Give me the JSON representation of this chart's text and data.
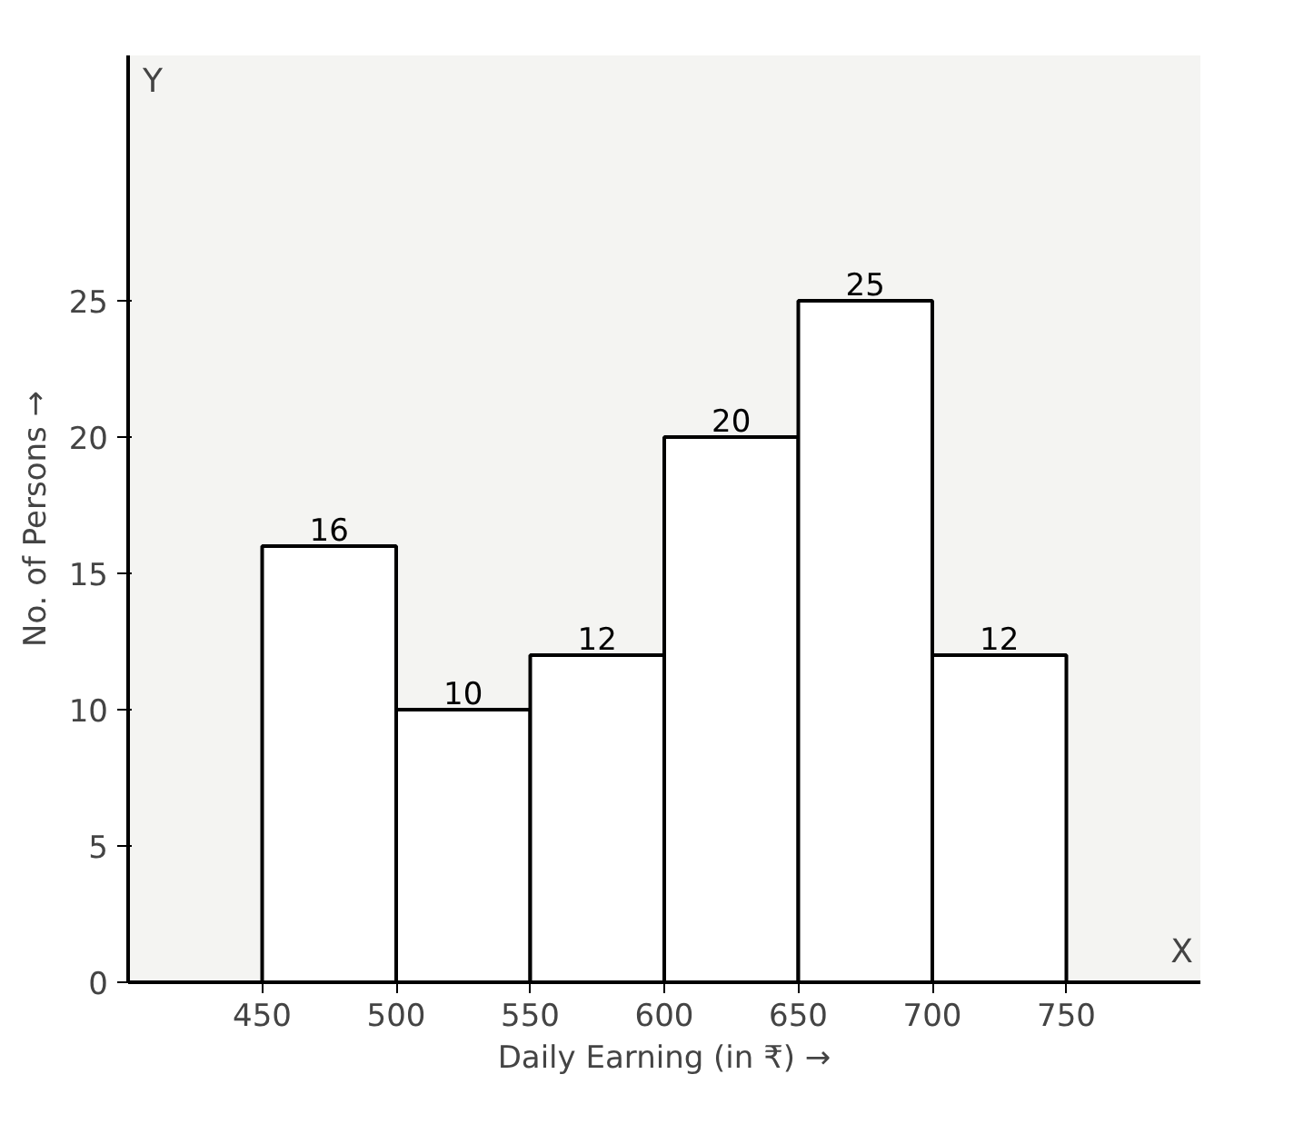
{
  "chart_data": {
    "type": "histogram",
    "xlabel": "Daily Earning (in ₹) →",
    "ylabel": "No. of Persons →",
    "bins": [
      450,
      500,
      550,
      600,
      650,
      700,
      750
    ],
    "values": [
      16,
      10,
      12,
      20,
      25,
      12
    ],
    "color": "#ffffff",
    "xlim": [
      400,
      800
    ],
    "ylim": [
      0,
      34
    ],
    "xticks": [
      450,
      500,
      550,
      600,
      650,
      700,
      750
    ],
    "yticks": [
      0,
      5,
      10,
      15,
      20,
      25
    ],
    "data_labels": true,
    "grid": false,
    "annotations": [
      "X",
      "Y"
    ]
  }
}
